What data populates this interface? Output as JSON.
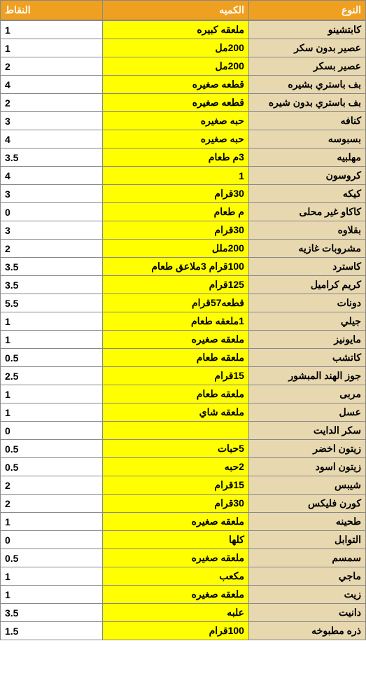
{
  "headers": {
    "type": "النوع",
    "quantity": "الكميه",
    "points": "النقاط"
  },
  "colors": {
    "header_bg": "#f0a020",
    "header_fg": "#ffffff",
    "tan": "#e8d8b0",
    "yellow": "#ffff00",
    "white": "#ffffff",
    "border": "#888888"
  },
  "column_widths": {
    "type": "32%",
    "quantity": "40%",
    "points": "28%"
  },
  "rows": [
    {
      "type": "كابتشينو",
      "quantity": "ملعقه كبيره",
      "points": "1"
    },
    {
      "type": "عصير بدون سكر",
      "quantity": "200مل",
      "points": "1"
    },
    {
      "type": "عصير بسكر",
      "quantity": "200مل",
      "points": "2"
    },
    {
      "type": "بف باستري بشيره",
      "quantity": "قطعه صغيره",
      "points": "4"
    },
    {
      "type": "بف باستري بدون شيره",
      "quantity": "قطعه صغيره",
      "points": "2"
    },
    {
      "type": "كنافه",
      "quantity": "حبه صغيره",
      "points": "3"
    },
    {
      "type": "بسبوسه",
      "quantity": "حبه صغيره",
      "points": "4"
    },
    {
      "type": "مهلبيه",
      "quantity": "3م طعام",
      "points": "3.5"
    },
    {
      "type": "كروسون",
      "quantity": "1",
      "points": "4"
    },
    {
      "type": "كيكه",
      "quantity": "30قرام",
      "points": "3"
    },
    {
      "type": "كاكاو غير محلى",
      "quantity": "م طعام",
      "points": "0"
    },
    {
      "type": "بقلاوه",
      "quantity": "30قرام",
      "points": "3"
    },
    {
      "type": "مشروبات غازيه",
      "quantity": "200ملل",
      "points": "2"
    },
    {
      "type": "كاسترد",
      "quantity": "100قرام 3ملاعق طعام",
      "points": "3.5"
    },
    {
      "type": "كريم كراميل",
      "quantity": "125قرام",
      "points": "3.5"
    },
    {
      "type": "دونات",
      "quantity": "قطعه57قرام",
      "points": "5.5"
    },
    {
      "type": "جيلي",
      "quantity": "1ملعقه طعام",
      "points": "1"
    },
    {
      "type": "مايونيز",
      "quantity": "ملعقه صغيره",
      "points": "1"
    },
    {
      "type": "كاتشب",
      "quantity": "ملعقه طعام",
      "points": "0.5"
    },
    {
      "type": "جوز الهند المبشور",
      "quantity": "15قرام",
      "points": "2.5"
    },
    {
      "type": "مربى",
      "quantity": "ملعقه طعام",
      "points": "1"
    },
    {
      "type": "عسل",
      "quantity": "ملعقه شاي",
      "points": "1"
    },
    {
      "type": "سكر الدايت",
      "quantity": "",
      "points": "0"
    },
    {
      "type": "زيتون اخضر",
      "quantity": "5حبات",
      "points": "0.5"
    },
    {
      "type": "زيتون اسود",
      "quantity": "2حبه",
      "points": "0.5"
    },
    {
      "type": "شيبس",
      "quantity": "15قرام",
      "points": "2"
    },
    {
      "type": "كورن فليكس",
      "quantity": "30قرام",
      "points": "2"
    },
    {
      "type": "طحينه",
      "quantity": "ملعقه صغيره",
      "points": "1"
    },
    {
      "type": "التوابل",
      "quantity": "كلها",
      "points": "0"
    },
    {
      "type": "سمسم",
      "quantity": "ملعقه صغيره",
      "points": "0.5"
    },
    {
      "type": "ماجي",
      "quantity": "مكعب",
      "points": "1"
    },
    {
      "type": "زيت",
      "quantity": "ملعقه صغيره",
      "points": "1"
    },
    {
      "type": "دانيت",
      "quantity": "علبه",
      "points": "3.5"
    },
    {
      "type": "ذره مطبوخه",
      "quantity": "100قرام",
      "points": "1.5"
    }
  ]
}
